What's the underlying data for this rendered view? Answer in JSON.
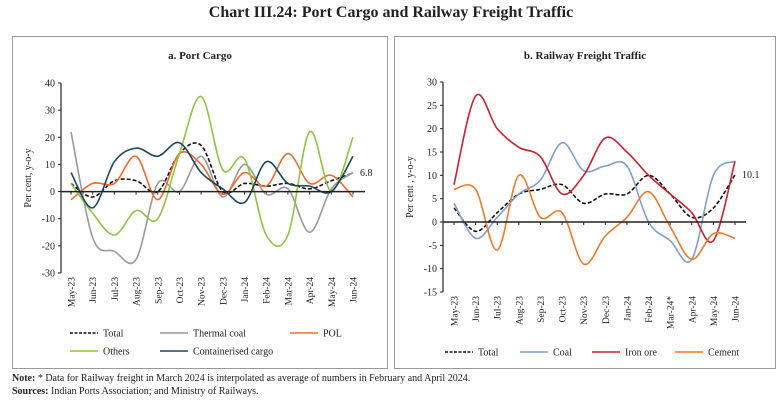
{
  "title": "Chart III.24: Port Cargo and Railway Freight Traffic",
  "note_label": "Note:",
  "note": "* Data for Railway freight in March 2024 is interpolated as average of numbers in February and April 2024.",
  "sources_label": "Sources:",
  "sources": "Indian Ports Association; and Ministry of Railways.",
  "chart_data": [
    {
      "type": "line",
      "title": "a. Port Cargo",
      "ylabel": "Per cent, y-o-y",
      "ylim": [
        -30,
        40
      ],
      "yticks": [
        40,
        30,
        20,
        10,
        0,
        -10,
        -20,
        -30
      ],
      "categories": [
        "May-23",
        "Jun-23",
        "Jul-23",
        "Aug-23",
        "Sep-23",
        "Oct-23",
        "Nov-23",
        "Dec-23",
        "Jan-24",
        "Feb-24",
        "Mar-24",
        "Apr-24",
        "May-24",
        "Jun-24"
      ],
      "annotation": "6.8",
      "legend": "bottom",
      "series": [
        {
          "name": "Total",
          "color": "#111111",
          "dash": true,
          "values": [
            3,
            -2,
            4,
            4,
            0,
            14,
            17,
            0,
            3,
            2,
            3,
            1,
            4,
            6.8
          ]
        },
        {
          "name": "Thermal coal",
          "color": "#9a9a9a",
          "values": [
            22,
            -17,
            -22,
            -25,
            3,
            0,
            13,
            -2,
            10,
            -1,
            1,
            -15,
            1,
            7
          ]
        },
        {
          "name": "POL",
          "color": "#f26b2a",
          "values": [
            -3,
            3,
            3,
            13,
            -3,
            14,
            10,
            -1,
            7,
            2,
            14,
            3,
            6,
            -2
          ]
        },
        {
          "name": "Others",
          "color": "#8cc63f",
          "values": [
            3,
            -8,
            -16,
            -7,
            -10,
            14,
            35,
            8,
            12,
            -16,
            -16,
            22,
            0,
            20
          ]
        },
        {
          "name": "Containerised cargo",
          "color": "#1b4760",
          "values": [
            7,
            -6,
            11,
            16,
            13,
            18,
            7,
            1,
            -4,
            11,
            3,
            2,
            0,
            13
          ]
        }
      ]
    },
    {
      "type": "line",
      "title": "b. Railway Freight Traffic",
      "ylabel": "Per cent , y-o-y",
      "ylim": [
        -15,
        30
      ],
      "yticks": [
        30,
        25,
        20,
        15,
        10,
        5,
        0,
        -5,
        -10,
        -15
      ],
      "categories": [
        "May-23",
        "Jun-23",
        "Jul-23",
        "Aug-23",
        "Sep-23",
        "Oct-23",
        "Nov-23",
        "Dec-23",
        "Jan-24",
        "Feb-24",
        "Mar-24*",
        "Apr-24",
        "May-24",
        "Jun-24"
      ],
      "annotation": "10.1",
      "legend": "bottom",
      "series": [
        {
          "name": "Total",
          "color": "#111111",
          "dash": true,
          "values": [
            3,
            -2,
            2,
            6,
            7,
            8,
            4,
            6,
            6,
            10,
            6,
            1,
            3,
            10.1
          ]
        },
        {
          "name": "Coal",
          "color": "#7b9fd6",
          "values": [
            4,
            -3.5,
            1,
            6,
            9,
            17,
            11,
            12,
            12,
            0,
            -4,
            -8,
            10,
            13
          ]
        },
        {
          "name": "Iron ore",
          "color": "#c8202f",
          "values": [
            8,
            27,
            20,
            16,
            14,
            6,
            10,
            18,
            15,
            10,
            6,
            2,
            -4,
            13
          ]
        },
        {
          "name": "Cement",
          "color": "#f07a2c",
          "values": [
            7,
            7,
            -6,
            10,
            1,
            2,
            -9,
            -3,
            1,
            6.5,
            -1,
            -8,
            -2.5,
            -3.5
          ]
        }
      ]
    }
  ]
}
